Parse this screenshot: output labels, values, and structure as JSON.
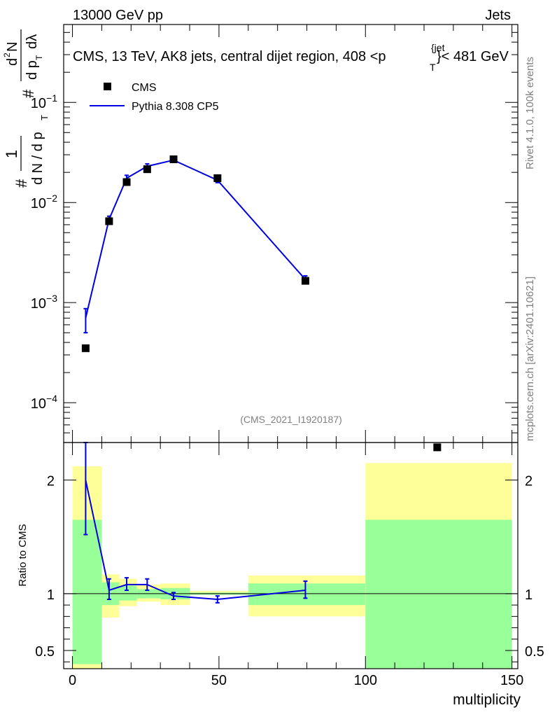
{
  "header": {
    "energy_label": "13000 GeV pp",
    "process_label": "Jets"
  },
  "title": {
    "main": "CMS, 13 TeV, AK8 jets, central dijet region, 408 <p",
    "sup": "{jet",
    "sub": "T",
    "tail": "}< 481 GeV"
  },
  "yaxis_label": {
    "numerator": "1",
    "denominator": "d N / d p",
    "den_sub": "T",
    "hash_top": "#",
    "hash_mid": "#",
    "frac_num": "d",
    "frac_num_sup": "2",
    "frac_num_n": "N",
    "frac_den": "d p",
    "frac_den_sub": "T",
    "frac_den_tail": "dλ"
  },
  "side_labels": {
    "rivet": "Rivet 4.1.0,  100k events",
    "mcplots": "mcplots.cern.ch [arXiv:2401.10621]"
  },
  "analysis_id": "(CMS_2021_I1920187)",
  "legend": {
    "data_label": "CMS",
    "mc_label": "Pythia 8.308 CP5"
  },
  "ratio_ylabel": "Ratio to CMS",
  "xlabel": "multiplicity",
  "colors": {
    "mc": "#0000e0",
    "band_inner": "#99ff99",
    "band_outer": "#ffff99",
    "data": "#000000"
  },
  "chart_data": [
    {
      "type": "scatter",
      "panel": "main",
      "yscale": "log",
      "xlim": [
        -3,
        152
      ],
      "ylim": [
        4e-05,
        0.6
      ],
      "y_tick_labels": [
        "10^{-4}",
        "10^{-3}",
        "10^{-2}",
        "10^{-1}"
      ],
      "series": [
        {
          "name": "CMS",
          "x": [
            4.5,
            12.5,
            18.5,
            25.5,
            34.5,
            49.5,
            79.5,
            124.5
          ],
          "y": [
            0.00035,
            0.0065,
            0.016,
            0.0215,
            0.027,
            0.0175,
            0.00165,
            3.58e-05
          ]
        },
        {
          "name": "Pythia 8.308 CP5",
          "x": [
            4.5,
            12.5,
            18.5,
            25.5,
            34.5,
            49.5,
            79.5
          ],
          "y": [
            0.0007,
            0.0068,
            0.0175,
            0.023,
            0.0265,
            0.0167,
            0.0017
          ],
          "yerr_low": [
            0.0002,
            0.0005,
            0.0012,
            0.0013,
            0.0012,
            0.0009,
            0.00015
          ],
          "yerr_high": [
            0.00017,
            0.0005,
            0.0012,
            0.0013,
            0.0012,
            0.0009,
            0.00015
          ]
        }
      ]
    },
    {
      "type": "line",
      "panel": "ratio",
      "xlim": [
        -3,
        152
      ],
      "ylim": [
        0.34,
        2.33
      ],
      "x_ticks": [
        0,
        50,
        100,
        150
      ],
      "y_ticks": [
        0.5,
        1,
        2
      ],
      "reference": 1,
      "bands": [
        {
          "x": [
            0,
            10
          ],
          "inner": [
            0.38,
            1.65
          ],
          "outer": [
            0.34,
            2.12
          ]
        },
        {
          "x": [
            10,
            16
          ],
          "inner": [
            0.9,
            1.1
          ],
          "outer": [
            0.79,
            1.17
          ]
        },
        {
          "x": [
            16,
            22
          ],
          "inner": [
            0.94,
            1.07
          ],
          "outer": [
            0.89,
            1.13
          ]
        },
        {
          "x": [
            22,
            30
          ],
          "inner": [
            0.96,
            1.04
          ],
          "outer": [
            0.93,
            1.08
          ]
        },
        {
          "x": [
            30,
            40
          ],
          "inner": [
            0.95,
            1.05
          ],
          "outer": [
            0.9,
            1.09
          ]
        },
        {
          "x": [
            40,
            60
          ],
          "inner": [
            0.99,
            1.01
          ],
          "outer": [
            0.99,
            1.025
          ]
        },
        {
          "x": [
            60,
            100
          ],
          "inner": [
            0.9,
            1.09
          ],
          "outer": [
            0.8,
            1.16
          ]
        },
        {
          "x": [
            100,
            150
          ],
          "inner": [
            0.34,
            1.65
          ],
          "outer": [
            0.34,
            2.15
          ]
        }
      ],
      "series": [
        {
          "name": "Pythia 8.308 CP5",
          "x": [
            4.5,
            12.5,
            18.5,
            25.5,
            34.5,
            49.5,
            79.5
          ],
          "y": [
            2.0,
            1.03,
            1.08,
            1.08,
            0.98,
            0.95,
            1.03
          ],
          "yerr_low": [
            0.48,
            0.08,
            0.05,
            0.05,
            0.03,
            0.03,
            0.07
          ],
          "yerr_high": [
            0.48,
            0.1,
            0.06,
            0.05,
            0.03,
            0.03,
            0.08
          ]
        }
      ]
    }
  ]
}
